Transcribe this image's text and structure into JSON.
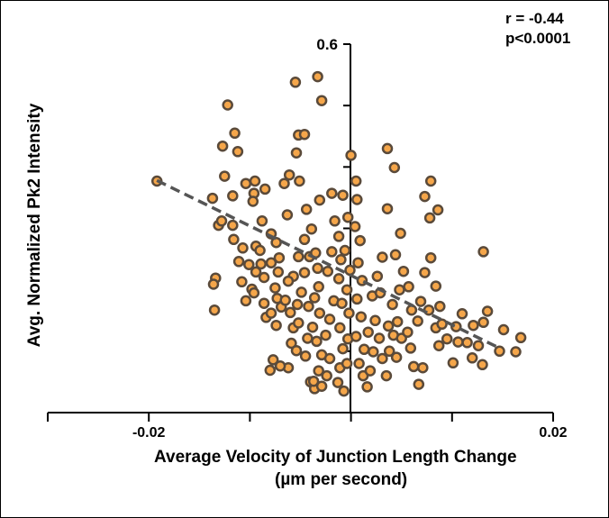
{
  "chart_data": {
    "type": "scatter",
    "title": "",
    "xlabel": "Average Velocity of Junction Length Change",
    "xlabel_unit": "(µm per second)",
    "ylabel": "Avg. Normalized Pk2 Intensity",
    "xlim": [
      -0.03,
      0.02
    ],
    "ylim": [
      0.0,
      0.6
    ],
    "x_tick_labels": [
      "-0.02",
      "0.02"
    ],
    "y_tick_labels": [
      "0.6"
    ],
    "grid": false,
    "legend": "none",
    "marker_color": "#f5a64a",
    "marker_edge": "#5a4a3a",
    "trend_color": "#555555",
    "annotations": [
      "r = -0.44",
      "p<0.0001"
    ],
    "trendline": {
      "x": [
        -0.0192,
        0.0147
      ],
      "y": [
        0.378,
        0.105
      ]
    },
    "points": [
      {
        "x": -0.0192,
        "y": 0.377
      },
      {
        "x": -0.0137,
        "y": 0.349
      },
      {
        "x": -0.0131,
        "y": 0.305
      },
      {
        "x": -0.0128,
        "y": 0.312
      },
      {
        "x": -0.0117,
        "y": 0.305
      },
      {
        "x": -0.0134,
        "y": 0.219
      },
      {
        "x": -0.0136,
        "y": 0.209
      },
      {
        "x": -0.0135,
        "y": 0.167
      },
      {
        "x": -0.0122,
        "y": 0.501
      },
      {
        "x": -0.0115,
        "y": 0.455
      },
      {
        "x": -0.0127,
        "y": 0.434
      },
      {
        "x": -0.0112,
        "y": 0.425
      },
      {
        "x": -0.0125,
        "y": 0.385
      },
      {
        "x": -0.0117,
        "y": 0.353
      },
      {
        "x": -0.0116,
        "y": 0.282
      },
      {
        "x": -0.0107,
        "y": 0.268
      },
      {
        "x": -0.0111,
        "y": 0.246
      },
      {
        "x": -0.0108,
        "y": 0.213
      },
      {
        "x": -0.0101,
        "y": 0.241
      },
      {
        "x": -0.0094,
        "y": 0.271
      },
      {
        "x": -0.0094,
        "y": 0.229
      },
      {
        "x": -0.0098,
        "y": 0.201
      },
      {
        "x": -0.0104,
        "y": 0.182
      },
      {
        "x": -0.0096,
        "y": 0.195
      },
      {
        "x": -0.0086,
        "y": 0.22
      },
      {
        "x": -0.0089,
        "y": 0.242
      },
      {
        "x": -0.009,
        "y": 0.264
      },
      {
        "x": -0.0086,
        "y": 0.178
      },
      {
        "x": -0.0084,
        "y": 0.155
      },
      {
        "x": -0.0096,
        "y": 0.357
      },
      {
        "x": -0.0097,
        "y": 0.344
      },
      {
        "x": -0.0104,
        "y": 0.373
      },
      {
        "x": -0.0095,
        "y": 0.377
      },
      {
        "x": -0.0085,
        "y": 0.364
      },
      {
        "x": -0.0088,
        "y": 0.312
      },
      {
        "x": -0.0079,
        "y": 0.291
      },
      {
        "x": -0.0074,
        "y": 0.277
      },
      {
        "x": -0.0079,
        "y": 0.244
      },
      {
        "x": -0.0075,
        "y": 0.203
      },
      {
        "x": -0.0073,
        "y": 0.186
      },
      {
        "x": -0.0079,
        "y": 0.162
      },
      {
        "x": -0.0074,
        "y": 0.142
      },
      {
        "x": -0.0069,
        "y": 0.172
      },
      {
        "x": -0.0072,
        "y": 0.229
      },
      {
        "x": -0.0071,
        "y": 0.252
      },
      {
        "x": -0.0063,
        "y": 0.322
      },
      {
        "x": -0.0066,
        "y": 0.373
      },
      {
        "x": -0.0061,
        "y": 0.387
      },
      {
        "x": -0.0052,
        "y": 0.452
      },
      {
        "x": -0.0054,
        "y": 0.423
      },
      {
        "x": -0.0046,
        "y": 0.453
      },
      {
        "x": -0.0051,
        "y": 0.377
      },
      {
        "x": -0.0044,
        "y": 0.331
      },
      {
        "x": -0.0039,
        "y": 0.299
      },
      {
        "x": -0.0046,
        "y": 0.282
      },
      {
        "x": -0.0052,
        "y": 0.254
      },
      {
        "x": -0.0057,
        "y": 0.222
      },
      {
        "x": -0.0062,
        "y": 0.214
      },
      {
        "x": -0.0065,
        "y": 0.183
      },
      {
        "x": -0.006,
        "y": 0.163
      },
      {
        "x": -0.0057,
        "y": 0.138
      },
      {
        "x": -0.0059,
        "y": 0.113
      },
      {
        "x": -0.0053,
        "y": 0.176
      },
      {
        "x": -0.0052,
        "y": 0.146
      },
      {
        "x": -0.0049,
        "y": 0.196
      },
      {
        "x": -0.0046,
        "y": 0.228
      },
      {
        "x": -0.0041,
        "y": 0.254
      },
      {
        "x": -0.0042,
        "y": 0.173
      },
      {
        "x": -0.0043,
        "y": 0.121
      },
      {
        "x": -0.0045,
        "y": 0.092
      },
      {
        "x": -0.004,
        "y": 0.05
      },
      {
        "x": -0.0036,
        "y": 0.039
      },
      {
        "x": -0.0054,
        "y": 0.101
      },
      {
        "x": -0.0062,
        "y": 0.073
      },
      {
        "x": -0.007,
        "y": 0.076
      },
      {
        "x": -0.0077,
        "y": 0.086
      },
      {
        "x": -0.008,
        "y": 0.069
      },
      {
        "x": -0.0055,
        "y": 0.538
      },
      {
        "x": -0.0033,
        "y": 0.547
      },
      {
        "x": -0.0029,
        "y": 0.508
      },
      {
        "x": -0.0031,
        "y": 0.346
      },
      {
        "x": -0.0035,
        "y": 0.26
      },
      {
        "x": -0.0033,
        "y": 0.235
      },
      {
        "x": -0.0032,
        "y": 0.205
      },
      {
        "x": -0.0036,
        "y": 0.187
      },
      {
        "x": -0.0031,
        "y": 0.162
      },
      {
        "x": -0.0038,
        "y": 0.139
      },
      {
        "x": -0.0034,
        "y": 0.116
      },
      {
        "x": -0.0029,
        "y": 0.094
      },
      {
        "x": -0.0032,
        "y": 0.068
      },
      {
        "x": -0.0037,
        "y": 0.051
      },
      {
        "x": -0.0029,
        "y": 0.043
      },
      {
        "x": -0.0024,
        "y": 0.06
      },
      {
        "x": -0.0021,
        "y": 0.088
      },
      {
        "x": -0.0025,
        "y": 0.126
      },
      {
        "x": -0.0021,
        "y": 0.152
      },
      {
        "x": -0.0017,
        "y": 0.182
      },
      {
        "x": -0.0023,
        "y": 0.23
      },
      {
        "x": -0.0019,
        "y": 0.262
      },
      {
        "x": -0.0016,
        "y": 0.312
      },
      {
        "x": -0.0019,
        "y": 0.357
      },
      {
        "x": -0.0012,
        "y": 0.287
      },
      {
        "x": -0.001,
        "y": 0.249
      },
      {
        "x": -0.0012,
        "y": 0.218
      },
      {
        "x": -0.0009,
        "y": 0.178
      },
      {
        "x": -0.0011,
        "y": 0.138
      },
      {
        "x": -0.0008,
        "y": 0.104
      },
      {
        "x": -0.0011,
        "y": 0.073
      },
      {
        "x": -0.0013,
        "y": 0.049
      },
      {
        "x": -0.0007,
        "y": 0.035
      },
      {
        "x": -0.0004,
        "y": 0.08
      },
      {
        "x": -0.0003,
        "y": 0.12
      },
      {
        "x": -0.0002,
        "y": 0.162
      },
      {
        "x": -0.0004,
        "y": 0.2
      },
      {
        "x": -0.0001,
        "y": 0.232
      },
      {
        "x": -0.0006,
        "y": 0.264
      },
      {
        "x": -0.0008,
        "y": 0.354
      },
      {
        "x": -0.0003,
        "y": 0.318
      },
      {
        "x": 0.0,
        "y": 0.419
      },
      {
        "x": 0.0005,
        "y": 0.377
      },
      {
        "x": 0.0006,
        "y": 0.347
      },
      {
        "x": 0.0004,
        "y": 0.303
      },
      {
        "x": 0.0009,
        "y": 0.28
      },
      {
        "x": 0.0007,
        "y": 0.244
      },
      {
        "x": 0.0011,
        "y": 0.215
      },
      {
        "x": 0.0006,
        "y": 0.185
      },
      {
        "x": 0.001,
        "y": 0.156
      },
      {
        "x": 0.0005,
        "y": 0.124
      },
      {
        "x": 0.0013,
        "y": 0.103
      },
      {
        "x": 0.0008,
        "y": 0.08
      },
      {
        "x": 0.0012,
        "y": 0.06
      },
      {
        "x": 0.0016,
        "y": 0.042
      },
      {
        "x": 0.0019,
        "y": 0.068
      },
      {
        "x": 0.0022,
        "y": 0.099
      },
      {
        "x": 0.0017,
        "y": 0.131
      },
      {
        "x": 0.0024,
        "y": 0.15
      },
      {
        "x": 0.0021,
        "y": 0.19
      },
      {
        "x": 0.0026,
        "y": 0.222
      },
      {
        "x": 0.0029,
        "y": 0.195
      },
      {
        "x": 0.0028,
        "y": 0.121
      },
      {
        "x": 0.0031,
        "y": 0.088
      },
      {
        "x": 0.0035,
        "y": 0.06
      },
      {
        "x": 0.0038,
        "y": 0.1
      },
      {
        "x": 0.0037,
        "y": 0.141
      },
      {
        "x": 0.0042,
        "y": 0.126
      },
      {
        "x": 0.0046,
        "y": 0.148
      },
      {
        "x": 0.005,
        "y": 0.121
      },
      {
        "x": 0.0045,
        "y": 0.09
      },
      {
        "x": 0.0041,
        "y": 0.176
      },
      {
        "x": 0.0048,
        "y": 0.2
      },
      {
        "x": 0.0044,
        "y": 0.257
      },
      {
        "x": 0.0049,
        "y": 0.292
      },
      {
        "x": 0.0036,
        "y": 0.43
      },
      {
        "x": 0.0043,
        "y": 0.399
      },
      {
        "x": 0.0036,
        "y": 0.332
      },
      {
        "x": 0.0031,
        "y": 0.253
      },
      {
        "x": 0.0052,
        "y": 0.23
      },
      {
        "x": 0.0057,
        "y": 0.205
      },
      {
        "x": 0.006,
        "y": 0.167
      },
      {
        "x": 0.0056,
        "y": 0.131
      },
      {
        "x": 0.0059,
        "y": 0.105
      },
      {
        "x": 0.0062,
        "y": 0.075
      },
      {
        "x": 0.0067,
        "y": 0.046
      },
      {
        "x": 0.0071,
        "y": 0.073
      },
      {
        "x": 0.0066,
        "y": 0.149
      },
      {
        "x": 0.0069,
        "y": 0.181
      },
      {
        "x": 0.0077,
        "y": 0.167
      },
      {
        "x": 0.0073,
        "y": 0.228
      },
      {
        "x": 0.0079,
        "y": 0.252
      },
      {
        "x": 0.0078,
        "y": 0.317
      },
      {
        "x": 0.0073,
        "y": 0.352
      },
      {
        "x": 0.0079,
        "y": 0.377
      },
      {
        "x": 0.0086,
        "y": 0.33
      },
      {
        "x": 0.0084,
        "y": 0.206
      },
      {
        "x": 0.0088,
        "y": 0.173
      },
      {
        "x": 0.0084,
        "y": 0.138
      },
      {
        "x": 0.0087,
        "y": 0.109
      },
      {
        "x": 0.009,
        "y": 0.144
      },
      {
        "x": 0.0095,
        "y": 0.12
      },
      {
        "x": 0.0101,
        "y": 0.081
      },
      {
        "x": 0.0106,
        "y": 0.115
      },
      {
        "x": 0.0104,
        "y": 0.14
      },
      {
        "x": 0.011,
        "y": 0.161
      },
      {
        "x": 0.0121,
        "y": 0.142
      },
      {
        "x": 0.0115,
        "y": 0.114
      },
      {
        "x": 0.012,
        "y": 0.089
      },
      {
        "x": 0.0126,
        "y": 0.109
      },
      {
        "x": 0.013,
        "y": 0.078
      },
      {
        "x": 0.0131,
        "y": 0.147
      },
      {
        "x": 0.0135,
        "y": 0.165
      },
      {
        "x": 0.0131,
        "y": 0.262
      },
      {
        "x": 0.0151,
        "y": 0.135
      },
      {
        "x": 0.0168,
        "y": 0.122
      },
      {
        "x": 0.0147,
        "y": 0.1
      },
      {
        "x": 0.0163,
        "y": 0.099
      }
    ]
  }
}
